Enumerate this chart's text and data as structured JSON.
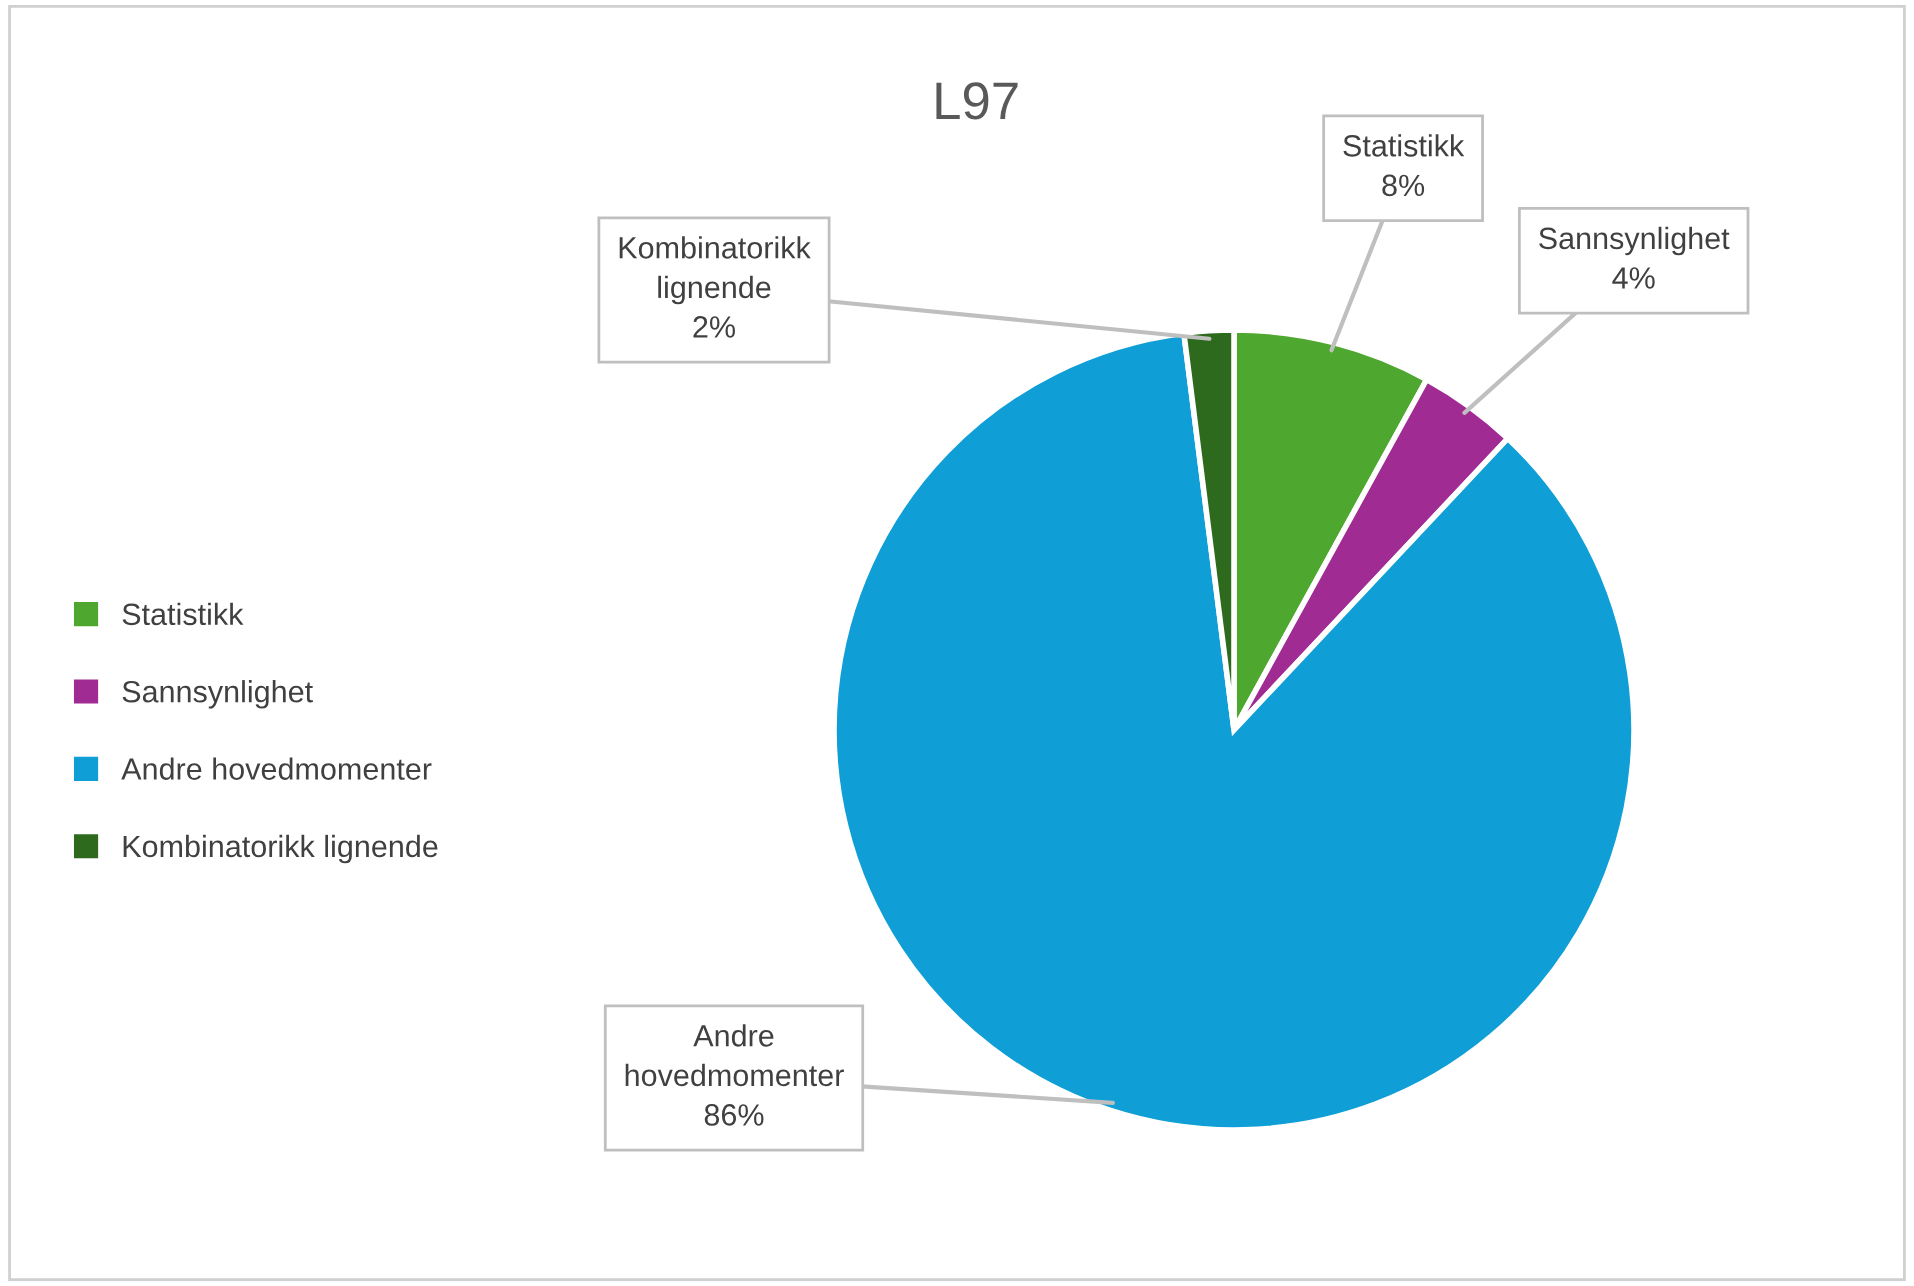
{
  "chart_data": {
    "type": "pie",
    "title": "L97",
    "categories": [
      "Statistikk",
      "Sannsynlighet",
      "Andre hovedmomenter",
      "Kombinatorikk lignende"
    ],
    "values": [
      8,
      4,
      86,
      2
    ],
    "colors": [
      "#4ea72e",
      "#a02b93",
      "#0f9ed5",
      "#2d6a1e"
    ],
    "value_labels": [
      "8%",
      "4%",
      "86%",
      "2%"
    ],
    "legend": "left"
  }
}
